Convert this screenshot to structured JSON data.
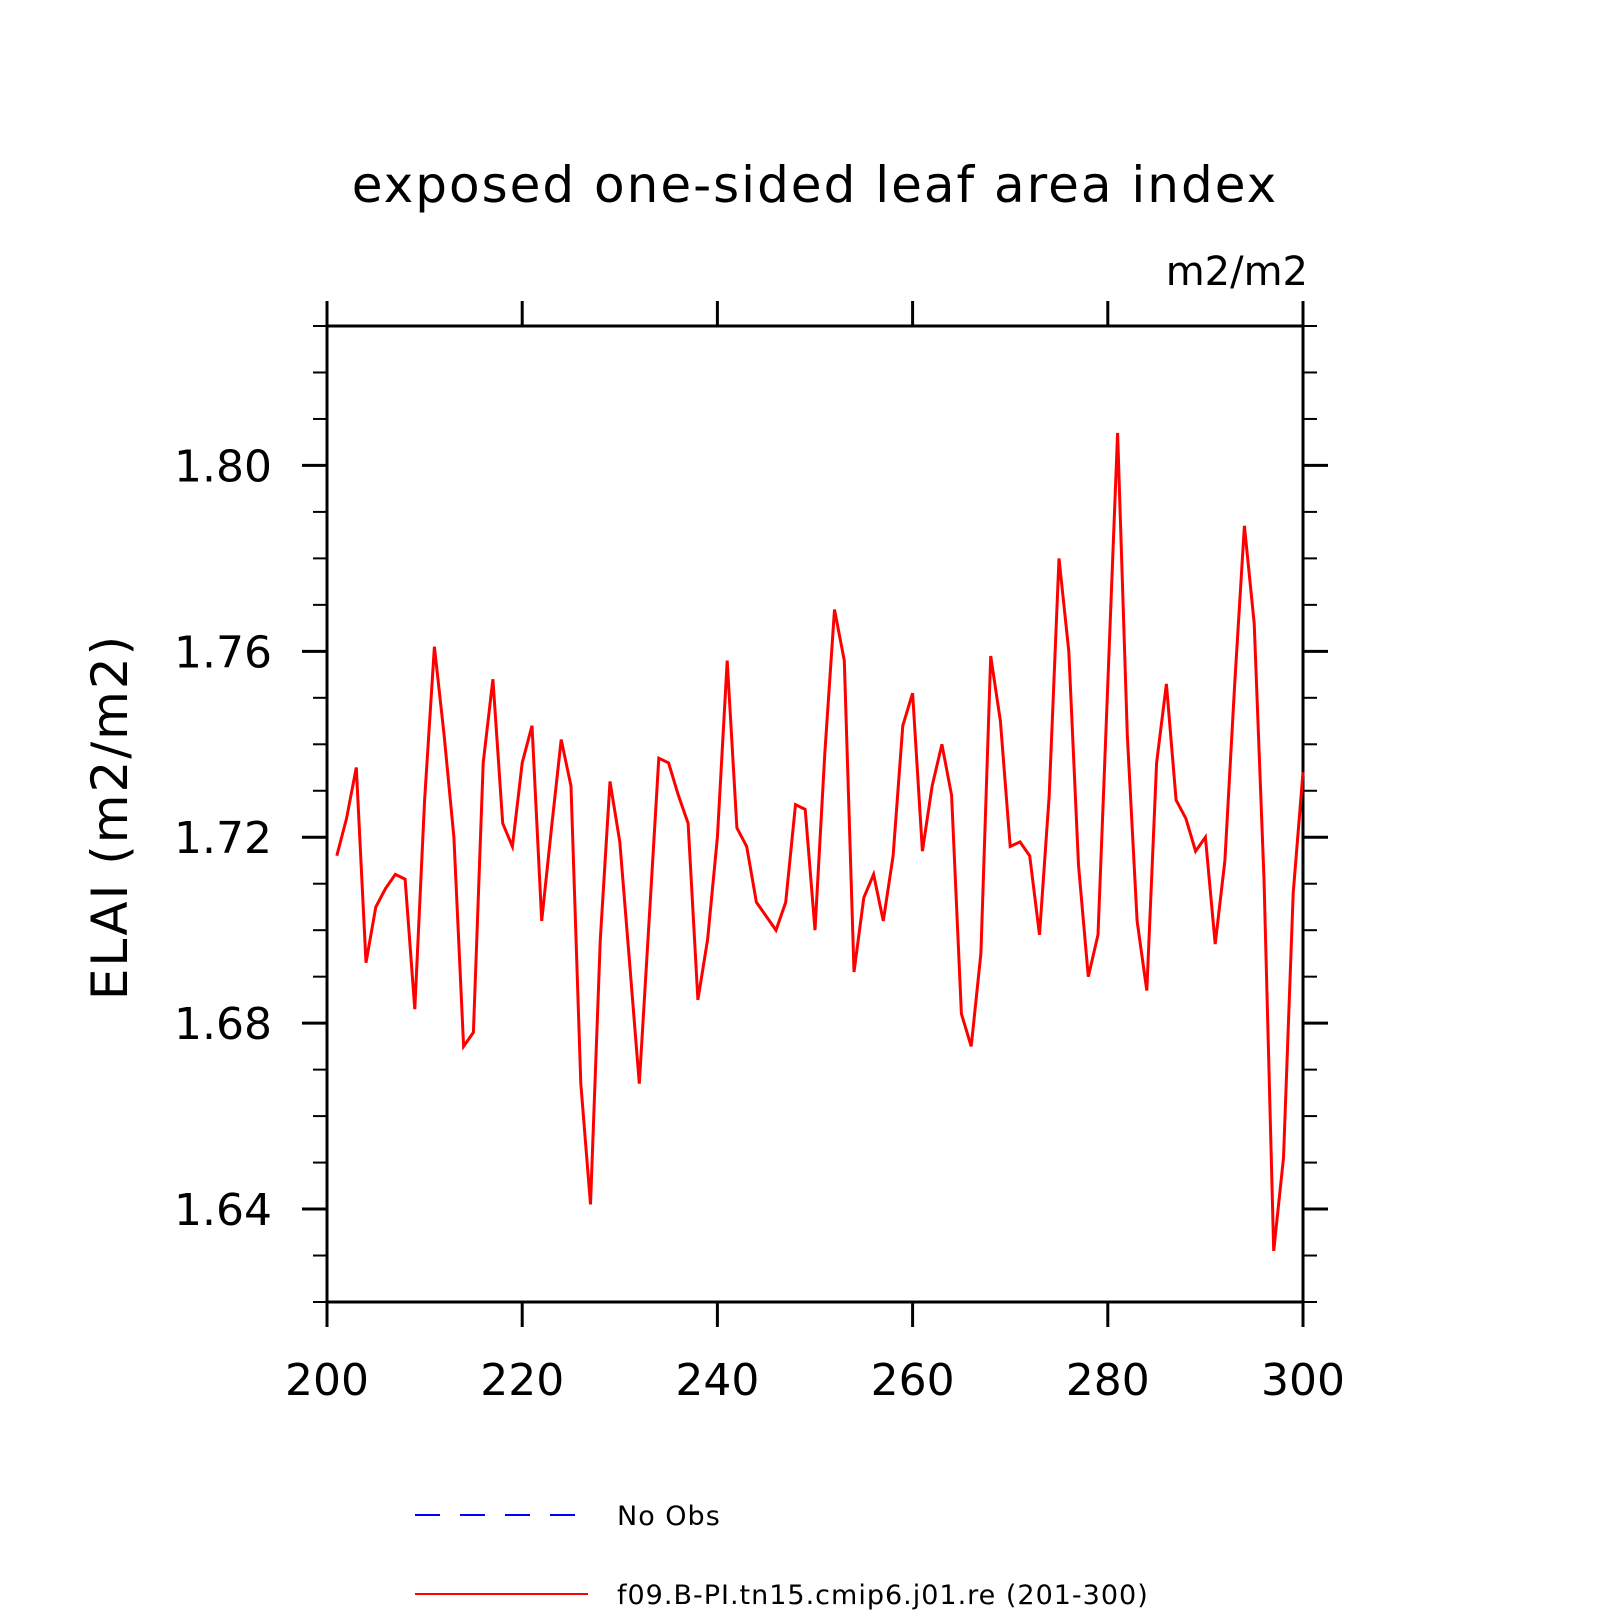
{
  "chart_data": {
    "type": "line",
    "title": "exposed one-sided leaf area index",
    "units": "m2/m2",
    "xlabel": "",
    "ylabel": "ELAI  (m2/m2)",
    "xlim": [
      200,
      300
    ],
    "ylim": [
      1.62,
      1.83
    ],
    "x_ticks": [
      200,
      220,
      240,
      260,
      280,
      300
    ],
    "x_tick_labels": [
      "200",
      "220",
      "240",
      "260",
      "280",
      "300"
    ],
    "y_ticks": [
      1.64,
      1.68,
      1.72,
      1.76,
      1.8
    ],
    "y_tick_labels": [
      "1.64",
      "1.68",
      "1.72",
      "1.76",
      "1.80"
    ],
    "grid": false,
    "legend": {
      "placement": "bottom",
      "entries": [
        {
          "label": "No Obs",
          "color": "#0000ff",
          "style": "dashed"
        },
        {
          "label": "f09.B-PI.tn15.cmip6.j01.re (201-300)",
          "color": "#ff0000",
          "style": "solid"
        }
      ]
    },
    "series": [
      {
        "name": "f09.B-PI.tn15.cmip6.j01.re (201-300)",
        "color": "#ff0000",
        "x": [
          201,
          202,
          203,
          204,
          205,
          206,
          207,
          208,
          209,
          210,
          211,
          212,
          213,
          214,
          215,
          216,
          217,
          218,
          219,
          220,
          221,
          222,
          223,
          224,
          225,
          226,
          227,
          228,
          229,
          230,
          231,
          232,
          233,
          234,
          235,
          236,
          237,
          238,
          239,
          240,
          241,
          242,
          243,
          244,
          245,
          246,
          247,
          248,
          249,
          250,
          251,
          252,
          253,
          254,
          255,
          256,
          257,
          258,
          259,
          260,
          261,
          262,
          263,
          264,
          265,
          266,
          267,
          268,
          269,
          270,
          271,
          272,
          273,
          274,
          275,
          276,
          277,
          278,
          279,
          280,
          281,
          282,
          283,
          284,
          285,
          286,
          287,
          288,
          289,
          290,
          291,
          292,
          293,
          294,
          295,
          296,
          297,
          298,
          299,
          300
        ],
        "values": [
          1.716,
          1.724,
          1.735,
          1.693,
          1.705,
          1.709,
          1.712,
          1.711,
          1.683,
          1.728,
          1.761,
          1.742,
          1.72,
          1.675,
          1.678,
          1.736,
          1.754,
          1.723,
          1.718,
          1.736,
          1.744,
          1.702,
          1.722,
          1.741,
          1.731,
          1.667,
          1.641,
          1.698,
          1.732,
          1.719,
          1.693,
          1.667,
          1.702,
          1.737,
          1.736,
          1.729,
          1.723,
          1.685,
          1.698,
          1.72,
          1.758,
          1.722,
          1.718,
          1.706,
          1.703,
          1.7,
          1.706,
          1.727,
          1.726,
          1.7,
          1.738,
          1.769,
          1.758,
          1.691,
          1.707,
          1.712,
          1.702,
          1.716,
          1.744,
          1.751,
          1.717,
          1.731,
          1.74,
          1.729,
          1.682,
          1.675,
          1.695,
          1.759,
          1.745,
          1.718,
          1.719,
          1.716,
          1.699,
          1.729,
          1.78,
          1.76,
          1.714,
          1.69,
          1.699,
          1.753,
          1.807,
          1.742,
          1.702,
          1.687,
          1.736,
          1.753,
          1.728,
          1.724,
          1.717,
          1.72,
          1.697,
          1.715,
          1.753,
          1.787,
          1.766,
          1.711,
          1.631,
          1.651,
          1.708,
          1.734
        ]
      }
    ]
  }
}
